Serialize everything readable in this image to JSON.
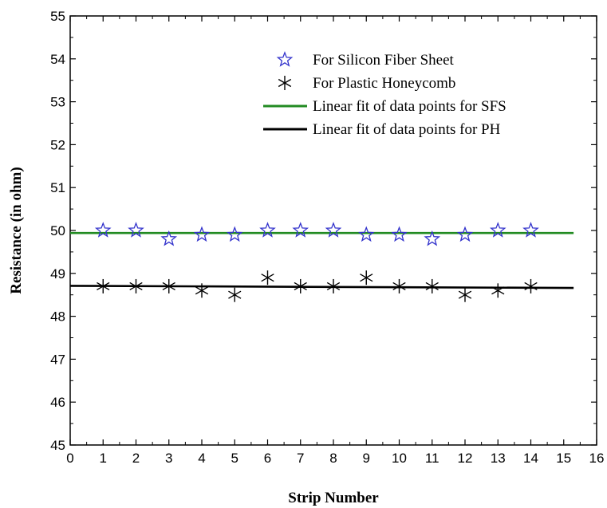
{
  "chart_data": {
    "type": "scatter",
    "title": "",
    "xlabel": "Strip Number",
    "ylabel": "Resistance (in ohm)",
    "xlim": [
      0,
      16
    ],
    "ylim": [
      45,
      55
    ],
    "xticks": [
      0,
      1,
      2,
      3,
      4,
      5,
      6,
      7,
      8,
      9,
      10,
      11,
      12,
      13,
      14,
      15,
      16
    ],
    "yticks": [
      45,
      46,
      47,
      48,
      49,
      50,
      51,
      52,
      53,
      54,
      55
    ],
    "grid": false,
    "legend_position": "top-right",
    "series": [
      {
        "name": "For Silicon Fiber Sheet",
        "marker": "star",
        "color": "#3333cc",
        "x": [
          1,
          2,
          3,
          4,
          5,
          6,
          7,
          8,
          9,
          10,
          11,
          12,
          13,
          14
        ],
        "y": [
          50.0,
          50.0,
          49.8,
          49.9,
          49.9,
          50.0,
          50.0,
          50.0,
          49.9,
          49.9,
          49.8,
          49.9,
          50.0,
          50.0
        ]
      },
      {
        "name": "For Plastic Honeycomb",
        "marker": "asterisk",
        "color": "#000000",
        "x": [
          1,
          2,
          3,
          4,
          5,
          6,
          7,
          8,
          9,
          10,
          11,
          12,
          13,
          14
        ],
        "y": [
          48.7,
          48.7,
          48.7,
          48.6,
          48.5,
          48.9,
          48.7,
          48.7,
          48.9,
          48.7,
          48.7,
          48.5,
          48.6,
          48.7
        ]
      }
    ],
    "fits": [
      {
        "name": "Linear fit of data points for SFS",
        "color": "#228B22",
        "x": [
          0,
          15.3
        ],
        "y": [
          49.94,
          49.94
        ]
      },
      {
        "name": "Linear fit of data points for PH",
        "color": "#000000",
        "x": [
          0,
          15.3
        ],
        "y": [
          48.71,
          48.66
        ]
      }
    ]
  }
}
